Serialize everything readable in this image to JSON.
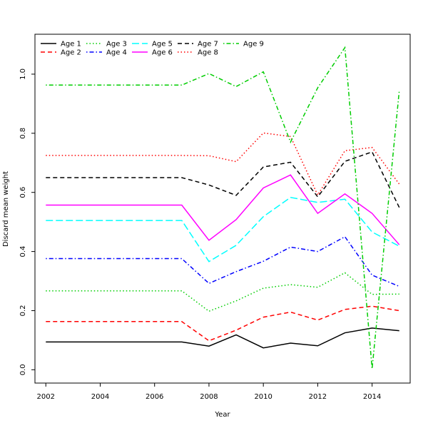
{
  "chart_data": {
    "type": "line",
    "title": "",
    "xlabel": "Year",
    "ylabel": "Discard mean weight",
    "xlim": [
      2001.6,
      2015.4
    ],
    "ylim": [
      -0.045,
      1.135
    ],
    "x_ticks": [
      {
        "value": 2002,
        "label": "2002"
      },
      {
        "value": 2004,
        "label": "2004"
      },
      {
        "value": 2006,
        "label": "2006"
      },
      {
        "value": 2008,
        "label": "2008"
      },
      {
        "value": 2010,
        "label": "2010"
      },
      {
        "value": 2012,
        "label": "2012"
      },
      {
        "value": 2014,
        "label": "2014"
      }
    ],
    "y_ticks": [
      {
        "value": 0.0,
        "label": "0.0"
      },
      {
        "value": 0.2,
        "label": "0.2"
      },
      {
        "value": 0.4,
        "label": "0.4"
      },
      {
        "value": 0.6,
        "label": "0.6"
      },
      {
        "value": 0.8,
        "label": "0.8"
      },
      {
        "value": 1.0,
        "label": "1.0"
      }
    ],
    "grid": false,
    "legend_position": "top-left",
    "x": [
      2002,
      2003,
      2004,
      2005,
      2006,
      2007,
      2008,
      2009,
      2010,
      2011,
      2012,
      2013,
      2014,
      2015
    ],
    "series": [
      {
        "name": "Age 1",
        "color": "#000000",
        "dash": "solid",
        "values": [
          0.094,
          0.094,
          0.094,
          0.094,
          0.094,
          0.094,
          0.08,
          0.118,
          0.074,
          0.09,
          0.081,
          0.125,
          0.141,
          0.132
        ]
      },
      {
        "name": "Age 2",
        "color": "#ff0000",
        "dash": "dashed",
        "values": [
          0.163,
          0.163,
          0.163,
          0.163,
          0.163,
          0.163,
          0.098,
          0.134,
          0.178,
          0.195,
          0.168,
          0.204,
          0.215,
          0.2
        ]
      },
      {
        "name": "Age 3",
        "color": "#00cd00",
        "dash": "dotted",
        "values": [
          0.267,
          0.267,
          0.267,
          0.267,
          0.267,
          0.267,
          0.198,
          0.233,
          0.276,
          0.288,
          0.279,
          0.328,
          0.255,
          0.256
        ]
      },
      {
        "name": "Age 4",
        "color": "#0000ff",
        "dash": "dotdash",
        "values": [
          0.376,
          0.376,
          0.376,
          0.376,
          0.376,
          0.376,
          0.292,
          0.332,
          0.367,
          0.415,
          0.4,
          0.45,
          0.32,
          0.282
        ]
      },
      {
        "name": "Age 5",
        "color": "#00ffff",
        "dash": "longdash",
        "values": [
          0.505,
          0.505,
          0.505,
          0.505,
          0.505,
          0.505,
          0.366,
          0.421,
          0.518,
          0.583,
          0.566,
          0.577,
          0.466,
          0.418
        ]
      },
      {
        "name": "Age 6",
        "color": "#ff00ff",
        "dash": "solid",
        "values": [
          0.557,
          0.557,
          0.557,
          0.557,
          0.557,
          0.557,
          0.438,
          0.508,
          0.615,
          0.659,
          0.529,
          0.595,
          0.529,
          0.423
        ]
      },
      {
        "name": "Age 7",
        "color": "#000000",
        "dash": "dashed",
        "values": [
          0.65,
          0.65,
          0.65,
          0.65,
          0.65,
          0.65,
          0.625,
          0.59,
          0.686,
          0.702,
          0.585,
          0.705,
          0.737,
          0.549
        ]
      },
      {
        "name": "Age 8",
        "color": "#ff0000",
        "dash": "dotted",
        "values": [
          0.725,
          0.725,
          0.725,
          0.725,
          0.725,
          0.725,
          0.724,
          0.704,
          0.801,
          0.789,
          0.591,
          0.741,
          0.752,
          0.628
        ]
      },
      {
        "name": "Age 9",
        "color": "#00cd00",
        "dash": "dotdash",
        "values": [
          0.963,
          0.963,
          0.963,
          0.963,
          0.963,
          0.963,
          1.002,
          0.958,
          1.008,
          0.77,
          0.954,
          1.09,
          0.003,
          0.945
        ]
      }
    ]
  }
}
